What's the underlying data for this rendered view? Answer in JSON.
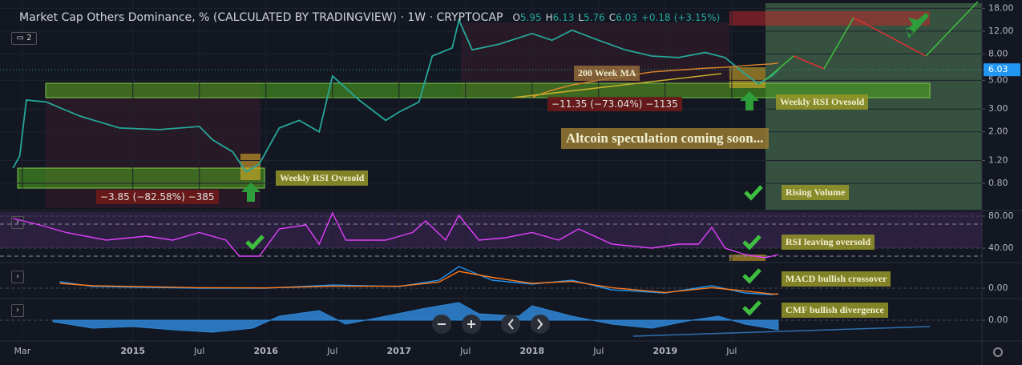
{
  "ui": {
    "layout_count": "2"
  },
  "chart_data": [
    {
      "type": "line",
      "title": "Market Cap Others Dominance, % (CALCULATED BY TRADINGVIEW)",
      "interval": "1W",
      "source": "CRYPTOCAP",
      "ohlc": [
        {
          "label": "O",
          "value": 5.95
        },
        {
          "label": "H",
          "value": 6.13
        },
        {
          "label": "L",
          "value": 5.76
        },
        {
          "label": "C",
          "value": 6.03
        }
      ],
      "change": {
        "value": 0.18,
        "label": "+0.18"
      },
      "change_pct": {
        "value": 3.15,
        "label": "(+3.15%)"
      },
      "log_scale": true,
      "grid": true,
      "xlim": [
        2014.05,
        2021.38
      ],
      "xticks": [
        {
          "value": 2014.17,
          "label": "Mar"
        },
        2015,
        {
          "value": 2015.5,
          "label": "Jul"
        },
        2016,
        {
          "value": 2016.5,
          "label": "Jul"
        },
        2017,
        {
          "value": 2017.5,
          "label": "Jul"
        },
        2018,
        {
          "value": 2018.5,
          "label": "Jul"
        },
        2019,
        {
          "value": 2019.5,
          "label": "Jul"
        }
      ],
      "ylim": [
        0.5,
        20
      ],
      "yticks": [
        {
          "value": 0.8,
          "label": "0.80"
        },
        {
          "value": 1.2,
          "label": "1.20"
        },
        {
          "value": 2,
          "label": "2.00"
        },
        {
          "value": 3,
          "label": "3.00"
        },
        {
          "value": 5,
          "label": "5.00"
        },
        {
          "value": 8,
          "label": "8.00"
        },
        {
          "value": 12,
          "label": "12.00"
        },
        {
          "value": 18,
          "label": "18.00"
        }
      ],
      "x": [
        2014.1,
        2014.15,
        2014.2,
        2014.35,
        2014.6,
        2014.9,
        2015.2,
        2015.5,
        2015.6,
        2015.75,
        2015.85,
        2015.95,
        2016.1,
        2016.25,
        2016.4,
        2016.5,
        2016.7,
        2016.9,
        2017.0,
        2017.15,
        2017.25,
        2017.4,
        2017.45,
        2017.55,
        2017.75,
        2018.0,
        2018.15,
        2018.3,
        2018.5,
        2018.7,
        2018.9,
        2019.1,
        2019.3,
        2019.45,
        2019.6,
        2019.7,
        2019.8,
        2019.85
      ],
      "series": [
        {
          "color": "#26a69a",
          "values": [
            1.05,
            1.3,
            3.52,
            3.4,
            2.65,
            2.14,
            2.08,
            2.2,
            1.73,
            1.4,
            0.98,
            1.13,
            2.14,
            2.45,
            2.0,
            5.4,
            3.52,
            2.45,
            2.84,
            3.4,
            7.7,
            8.9,
            14.6,
            8.6,
            9.5,
            11.5,
            10.2,
            12.2,
            10.2,
            8.6,
            7.7,
            7.5,
            8.2,
            7.5,
            5.6,
            4.7,
            5.4,
            6.03
          ]
        },
        {
          "name": "200 Week MA",
          "color": "#e0892a",
          "values": [
            null,
            null,
            null,
            null,
            null,
            null,
            null,
            null,
            null,
            null,
            null,
            null,
            null,
            null,
            null,
            null,
            null,
            null,
            null,
            null,
            null,
            null,
            null,
            null,
            null,
            3.7,
            4.2,
            4.6,
            5.0,
            5.4,
            5.8,
            6.0,
            6.2,
            6.3,
            6.5,
            6.6,
            6.7,
            6.8
          ]
        }
      ],
      "annotations": {
        "drop_2018": "−11.35 (−73.04%) −1135",
        "drop_2014": "−3.85 (−82.58%) −385",
        "rsi_2015": "Weekly RSI Ovesold",
        "rsi_2019": "Weekly RSI Ovesold",
        "speculation": "Altcoin speculation coming soon...",
        "volume": "Rising Volume"
      }
    },
    {
      "type": "line",
      "annotation": "RSI leaving oversold",
      "ylim": [
        23,
        87
      ],
      "yticks": [
        {
          "value": 40,
          "label": "40.00"
        },
        {
          "value": 80,
          "label": "80.00"
        }
      ],
      "levels": [
        70,
        30
      ],
      "x": [
        2014.1,
        2014.3,
        2014.5,
        2014.8,
        2015.1,
        2015.3,
        2015.5,
        2015.7,
        2015.8,
        2015.95,
        2016.1,
        2016.3,
        2016.4,
        2016.5,
        2016.6,
        2016.9,
        2017.1,
        2017.2,
        2017.35,
        2017.45,
        2017.6,
        2017.8,
        2018.0,
        2018.2,
        2018.35,
        2018.6,
        2018.9,
        2019.1,
        2019.25,
        2019.35,
        2019.45,
        2019.6,
        2019.75,
        2019.85
      ],
      "series": [
        {
          "color": "#e040fb",
          "values": [
            77,
            69,
            59.5,
            50,
            55,
            50,
            59.5,
            50,
            30,
            30,
            64,
            69,
            45,
            84,
            50,
            50,
            59.5,
            74,
            50,
            81,
            50,
            53,
            59.5,
            50,
            64,
            45,
            40,
            45,
            45,
            66,
            40,
            32,
            28,
            32
          ]
        }
      ]
    },
    {
      "type": "line",
      "annotation": "MACD bullish crossover",
      "ylim": [
        -0.4,
        1.0
      ],
      "yticks": [
        {
          "value": 0,
          "label": "0.00"
        }
      ],
      "x": [
        2014.45,
        2014.7,
        2015.5,
        2016.0,
        2016.5,
        2017.0,
        2017.3,
        2017.45,
        2017.7,
        2018.0,
        2018.3,
        2018.6,
        2019.0,
        2019.35,
        2019.6,
        2019.8,
        2019.85
      ],
      "series": [
        {
          "color": "#2196f3",
          "values": [
            0.27,
            0.07,
            0,
            0,
            0.13,
            0.07,
            0.33,
            0.9,
            0.33,
            0.17,
            0.33,
            -0.07,
            -0.2,
            0.1,
            -0.2,
            -0.27,
            -0.23
          ]
        },
        {
          "color": "#ff7a1a",
          "values": [
            0.2,
            0.1,
            0.02,
            0.01,
            0.08,
            0.08,
            0.25,
            0.7,
            0.45,
            0.2,
            0.28,
            0.02,
            -0.18,
            0.02,
            -0.12,
            -0.24,
            -0.25
          ]
        }
      ]
    },
    {
      "type": "area",
      "annotation": "CMF bullish divergence",
      "ylim": [
        -0.125,
        0.125
      ],
      "yticks": [
        {
          "value": 0,
          "label": "0.00"
        }
      ],
      "x": [
        2014.4,
        2014.7,
        2015.0,
        2015.3,
        2015.6,
        2015.9,
        2016.1,
        2016.4,
        2016.6,
        2016.9,
        2017.2,
        2017.45,
        2017.6,
        2017.9,
        2018.0,
        2018.3,
        2018.6,
        2018.9,
        2019.2,
        2019.4,
        2019.6,
        2019.85
      ],
      "series": [
        {
          "color": "#2f86d6",
          "values": [
            -0.01,
            -0.05,
            -0.04,
            -0.06,
            -0.075,
            -0.05,
            0.025,
            0.06,
            -0.025,
            0.025,
            0.075,
            0.11,
            0.04,
            0.025,
            0.09,
            0.025,
            -0.025,
            -0.05,
            0,
            0.025,
            -0.025,
            -0.06
          ]
        }
      ]
    }
  ]
}
